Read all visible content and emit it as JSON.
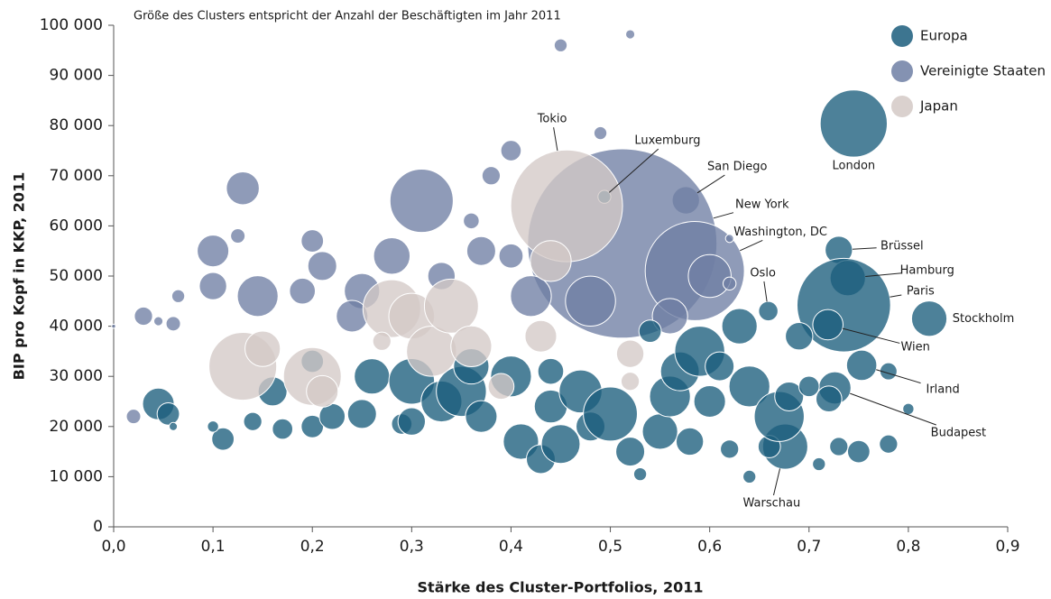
{
  "chart_data": {
    "type": "bubble",
    "title": "Größe des Clusters entspricht der Anzahl der Beschäftigten im Jahr 2011",
    "xlabel": "Stärke des Cluster-Portfolios, 2011",
    "ylabel": "BIP pro Kopf in KKP, 2011",
    "xlim": [
      0,
      0.9
    ],
    "ylim": [
      0,
      100000
    ],
    "xticks": [
      {
        "value": 0,
        "label": "0,0"
      },
      {
        "value": 0.1,
        "label": "0,1"
      },
      {
        "value": 0.2,
        "label": "0,2"
      },
      {
        "value": 0.3,
        "label": "0,3"
      },
      {
        "value": 0.4,
        "label": "0,4"
      },
      {
        "value": 0.5,
        "label": "0,5"
      },
      {
        "value": 0.6,
        "label": "0,6"
      },
      {
        "value": 0.7,
        "label": "0,7"
      },
      {
        "value": 0.8,
        "label": "0,8"
      },
      {
        "value": 0.9,
        "label": "0,9"
      }
    ],
    "yticks": [
      0,
      {
        "value": 10000,
        "label": "10 000"
      },
      {
        "value": 20000,
        "label": "20 000"
      },
      {
        "value": 30000,
        "label": "30 000"
      },
      {
        "value": 40000,
        "label": "40 000"
      },
      {
        "value": 50000,
        "label": "50 000"
      },
      {
        "value": 60000,
        "label": "60 000"
      },
      {
        "value": 70000,
        "label": "70 000"
      },
      {
        "value": 80000,
        "label": "80 000"
      },
      {
        "value": 90000,
        "label": "90 000"
      },
      {
        "value": 100000,
        "label": "100 000"
      }
    ],
    "legend": "upper right",
    "series": [
      {
        "name": "Europa",
        "color": "#1b5d7c",
        "labels": [
          "London",
          "Luxemburg",
          "Brüssel",
          "Hamburg",
          "Paris",
          "Stockholm",
          "Oslo",
          "Wien",
          "Irland",
          "Budapest",
          "Warschau"
        ],
        "x": [
          0.745,
          0.494,
          0.73,
          0.739,
          0.735,
          0.821,
          0.659,
          0.719,
          0.753,
          0.726,
          0.676,
          0.045,
          0.055,
          0.11,
          0.1,
          0.14,
          0.17,
          0.2,
          0.22,
          0.25,
          0.26,
          0.29,
          0.3,
          0.3,
          0.33,
          0.35,
          0.37,
          0.4,
          0.41,
          0.43,
          0.44,
          0.45,
          0.47,
          0.48,
          0.5,
          0.52,
          0.53,
          0.55,
          0.56,
          0.57,
          0.58,
          0.59,
          0.6,
          0.61,
          0.62,
          0.63,
          0.64,
          0.64,
          0.66,
          0.67,
          0.68,
          0.69,
          0.7,
          0.71,
          0.72,
          0.73,
          0.75,
          0.78,
          0.8,
          0.78,
          0.36,
          0.16,
          0.06,
          0.2,
          0.44,
          0.54
        ],
        "values": [
          80400,
          65800,
          55200,
          49600,
          44200,
          41500,
          43000,
          40300,
          32200,
          27700,
          16000,
          24500,
          22500,
          17500,
          20000,
          21000,
          19500,
          20000,
          22000,
          22500,
          30000,
          20500,
          29000,
          21000,
          25000,
          27000,
          22000,
          30000,
          17000,
          13500,
          24000,
          16500,
          27000,
          20000,
          22500,
          15000,
          10500,
          19000,
          26000,
          31000,
          17000,
          35000,
          25000,
          32000,
          15500,
          40000,
          10000,
          28000,
          16000,
          22000,
          26000,
          38000,
          28000,
          12500,
          25500,
          16000,
          15000,
          16500,
          23500,
          31000,
          32000,
          27000,
          20000,
          33000,
          31000,
          39000
        ],
        "sizes": [
          540,
          20,
          90,
          150,
          1050,
          150,
          45,
          110,
          110,
          125,
          245,
          120,
          60,
          60,
          15,
          40,
          50,
          60,
          80,
          100,
          150,
          50,
          250,
          90,
          200,
          300,
          120,
          200,
          150,
          100,
          130,
          180,
          220,
          100,
          350,
          100,
          20,
          150,
          200,
          180,
          90,
          300,
          120,
          100,
          40,
          150,
          20,
          200,
          60,
          300,
          100,
          90,
          50,
          20,
          80,
          40,
          60,
          40,
          15,
          35,
          150,
          100,
          8,
          60,
          80,
          60
        ]
      },
      {
        "name": "Vereinigte Staaten",
        "color": "#6f7fa4",
        "labels": [
          "San Diego",
          "New York",
          "Washington, DC"
        ],
        "x": [
          0.576,
          0.512,
          0.585,
          0.0,
          0.02,
          0.03,
          0.045,
          0.1,
          0.1,
          0.13,
          0.125,
          0.145,
          0.19,
          0.2,
          0.21,
          0.25,
          0.28,
          0.31,
          0.33,
          0.36,
          0.38,
          0.4,
          0.45,
          0.52,
          0.49,
          0.42,
          0.56,
          0.6,
          0.62,
          0.48,
          0.37,
          0.24,
          0.065,
          0.06,
          0.62,
          0.4
        ],
        "values": [
          65100,
          56500,
          51000,
          40000,
          22000,
          42000,
          41000,
          55000,
          48000,
          67500,
          58000,
          46000,
          47000,
          57000,
          52000,
          47000,
          54000,
          65000,
          50000,
          61000,
          70000,
          75000,
          96000,
          98200,
          78500,
          46000,
          42000,
          50000,
          57500,
          45000,
          55000,
          42000,
          46000,
          40500,
          48500,
          54000
        ],
        "sizes": [
          90,
          4300,
          1180,
          2,
          25,
          40,
          10,
          120,
          90,
          130,
          25,
          200,
          80,
          60,
          100,
          150,
          160,
          480,
          90,
          30,
          40,
          50,
          20,
          10,
          20,
          200,
          150,
          220,
          8,
          300,
          100,
          120,
          20,
          25,
          20,
          70
        ]
      },
      {
        "name": "Japan",
        "color": "#d3c9c6",
        "labels": [
          "Tokio"
        ],
        "x": [
          0.456,
          0.13,
          0.15,
          0.2,
          0.21,
          0.28,
          0.3,
          0.32,
          0.34,
          0.36,
          0.39,
          0.43,
          0.52,
          0.52,
          0.44,
          0.27
        ],
        "values": [
          64000,
          32000,
          35500,
          30000,
          27000,
          43500,
          42000,
          35000,
          44000,
          36000,
          28000,
          38000,
          34500,
          29000,
          53000,
          37000
        ],
        "sizes": [
          1500,
          550,
          150,
          400,
          120,
          400,
          250,
          300,
          350,
          200,
          80,
          120,
          90,
          40,
          200,
          40
        ]
      }
    ]
  }
}
